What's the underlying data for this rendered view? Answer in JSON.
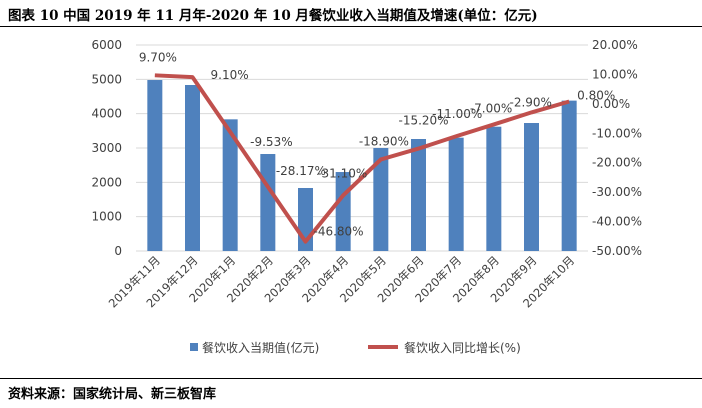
{
  "title": "图表 10 中国 2019 年 11 月年-2020 年 10 月餐饮业收入当期值及增速(单位：亿元)",
  "source": "资料来源：国家统计局、新三板智库",
  "chart_data": {
    "type": "bar+line",
    "categories": [
      "2019年11月",
      "2019年12月",
      "2020年1月",
      "2020年2月",
      "2020年3月",
      "2020年4月",
      "2020年5月",
      "2020年6月",
      "2020年7月",
      "2020年8月",
      "2020年9月",
      "2020年10月"
    ],
    "series": [
      {
        "name": "餐饮收入当期值(亿元)",
        "type": "bar",
        "axis": "left",
        "color": "#4f81bd",
        "values": [
          4980,
          4835,
          3835,
          2825,
          1835,
          2300,
          3000,
          3262,
          3300,
          3620,
          3728,
          4380
        ]
      },
      {
        "name": "餐饮收入同比增长(%)",
        "type": "line",
        "axis": "right",
        "color": "#c0504d",
        "values": [
          9.7,
          9.1,
          -9.53,
          -28.17,
          -46.8,
          -31.1,
          -18.9,
          -15.2,
          -11.0,
          -7.0,
          -2.9,
          0.8
        ],
        "labels": [
          "9.70%",
          "9.10%",
          "-9.53%",
          "-28.17%",
          "-46.80%",
          "-31.10%",
          "-18.90%",
          "-15.20%",
          "-11.00%",
          "-7.00%",
          "-2.90%",
          "0.80%"
        ]
      }
    ],
    "y_left": {
      "lim": [
        0,
        6000
      ],
      "ticks": [
        "0",
        "1000",
        "2000",
        "3000",
        "4000",
        "5000",
        "6000"
      ]
    },
    "y_right": {
      "lim": [
        -50,
        20
      ],
      "ticks": [
        "-50.00%",
        "-40.00%",
        "-30.00%",
        "-20.00%",
        "-10.00%",
        "0.00%",
        "10.00%",
        "20.00%"
      ]
    },
    "grid": true,
    "legend": "bottom"
  }
}
